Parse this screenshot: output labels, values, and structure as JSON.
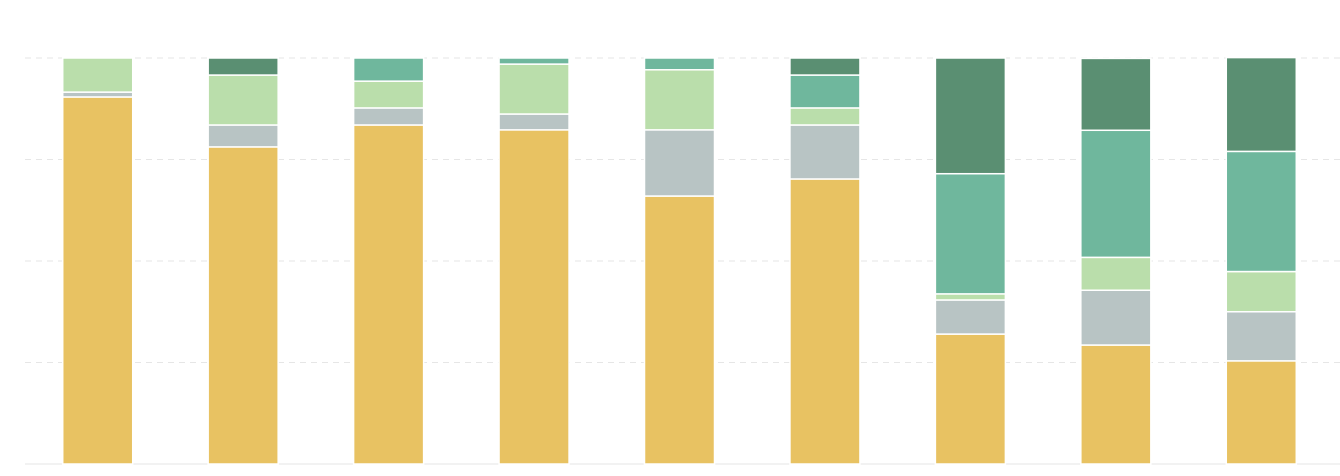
{
  "chart_data": {
    "type": "stacked-bar",
    "categories": [
      null,
      null,
      null,
      null,
      null,
      null,
      null,
      null,
      null
    ],
    "series": [
      {
        "color": "#e8c262",
        "values": [
          90.4,
          78.1,
          83.5,
          82.3,
          66.0,
          70.2,
          32.0,
          29.3,
          25.4
        ]
      },
      {
        "color": "#b8c4c4",
        "values": [
          1.2,
          5.4,
          4.2,
          3.9,
          16.3,
          13.3,
          8.4,
          13.5,
          12.1
        ]
      },
      {
        "color": "#badeab",
        "values": [
          8.4,
          12.3,
          6.6,
          12.3,
          14.8,
          4.2,
          1.5,
          8.1,
          9.9
        ]
      },
      {
        "color": "#6fb79d",
        "values": [
          0,
          0,
          5.7,
          1.5,
          2.9,
          8.1,
          29.6,
          31.3,
          29.6
        ]
      },
      {
        "color": "#5a8f72",
        "values": [
          0,
          4.2,
          0,
          0,
          0,
          4.2,
          28.5,
          17.7,
          23.1
        ]
      }
    ],
    "ylim": [
      0,
      100
    ],
    "yticks": [
      0,
      25,
      50,
      75,
      100
    ],
    "grid": true
  }
}
